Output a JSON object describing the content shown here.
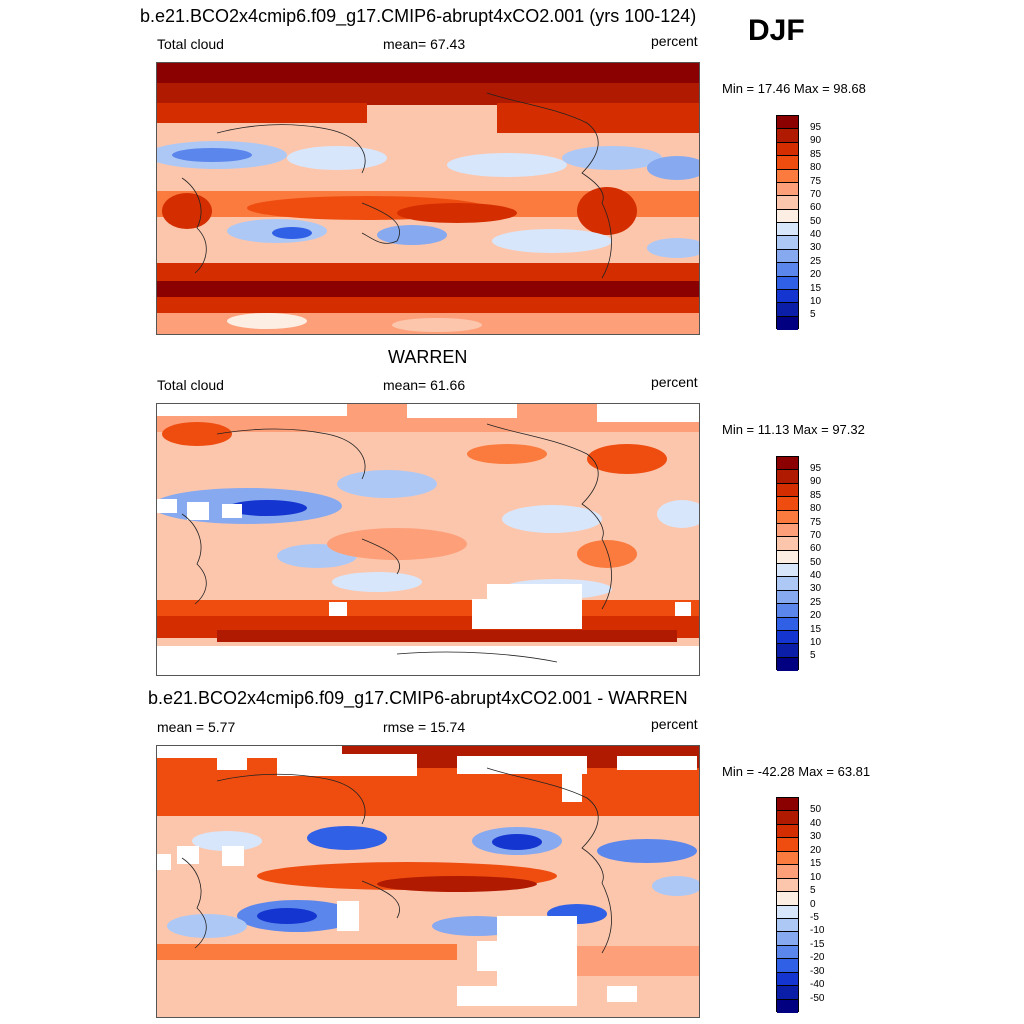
{
  "season": "DJF",
  "units": "percent",
  "panels": [
    {
      "title": "b.e21.BCO2x4cmip6.f09_g17.CMIP6-abrupt4xCO2.001 (yrs 100-124)",
      "left_label": "Total cloud",
      "center_label": "mean=  67.43",
      "right_label": "percent",
      "minmax": "Min =  17.46 Max =  98.68",
      "levels": [
        "95",
        "90",
        "85",
        "80",
        "75",
        "70",
        "60",
        "50",
        "40",
        "30",
        "25",
        "20",
        "15",
        "10",
        "5"
      ],
      "colors": [
        "#8b0000",
        "#b01a00",
        "#d42e00",
        "#ef4d10",
        "#fb7a3d",
        "#fda07a",
        "#fcc6ad",
        "#fdeee4",
        "#d8e6fb",
        "#aec8f5",
        "#86a9f0",
        "#5b86ec",
        "#3060e6",
        "#1535d0",
        "#0a1ea8",
        "#000080"
      ]
    },
    {
      "title": "WARREN",
      "left_label": "Total cloud",
      "center_label": "mean=  61.66",
      "right_label": "percent",
      "minmax": "Min =  11.13 Max =  97.32",
      "levels": [
        "95",
        "90",
        "85",
        "80",
        "75",
        "70",
        "60",
        "50",
        "40",
        "30",
        "25",
        "20",
        "15",
        "10",
        "5"
      ],
      "colors": [
        "#8b0000",
        "#b01a00",
        "#d42e00",
        "#ef4d10",
        "#fb7a3d",
        "#fda07a",
        "#fcc6ad",
        "#fdeee4",
        "#d8e6fb",
        "#aec8f5",
        "#86a9f0",
        "#5b86ec",
        "#3060e6",
        "#1535d0",
        "#0a1ea8",
        "#000080"
      ]
    },
    {
      "title": "b.e21.BCO2x4cmip6.f09_g17.CMIP6-abrupt4xCO2.001 - WARREN",
      "left_label": "mean =   5.77",
      "center_label": "rmse =  15.74",
      "right_label": "percent",
      "minmax": "Min = -42.28 Max =  63.81",
      "levels": [
        "50",
        "40",
        "30",
        "20",
        "15",
        "10",
        "5",
        "0",
        "-5",
        "-10",
        "-15",
        "-20",
        "-30",
        "-40",
        "-50"
      ],
      "colors": [
        "#8b0000",
        "#b01a00",
        "#d42e00",
        "#ef4d10",
        "#fb7a3d",
        "#fda07a",
        "#fcc6ad",
        "#fdeee4",
        "#d8e6fb",
        "#aec8f5",
        "#86a9f0",
        "#5b86ec",
        "#3060e6",
        "#1535d0",
        "#0a1ea8",
        "#000080"
      ]
    }
  ]
}
